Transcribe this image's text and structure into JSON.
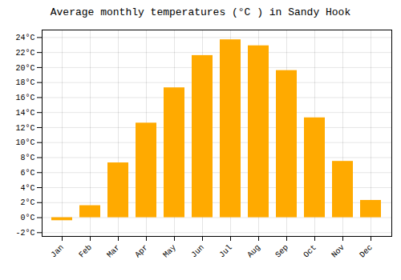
{
  "chart_data": {
    "type": "bar",
    "title": "Average monthly temperatures (°C ) in Sandy Hook",
    "categories": [
      "Jan",
      "Feb",
      "Mar",
      "Apr",
      "May",
      "Jun",
      "Jul",
      "Aug",
      "Sep",
      "Oct",
      "Nov",
      "Dec"
    ],
    "values": [
      -0.4,
      1.6,
      7.3,
      12.6,
      17.3,
      21.6,
      23.7,
      22.9,
      19.6,
      13.3,
      7.5,
      2.3
    ],
    "color": "#FFAA00",
    "ylim": [
      -2.5,
      25
    ],
    "yticks": [
      {
        "value": -2,
        "label": "-2°C"
      },
      {
        "value": 0,
        "label": "0°C"
      },
      {
        "value": 2,
        "label": "2°C"
      },
      {
        "value": 4,
        "label": "4°C"
      },
      {
        "value": 6,
        "label": "6°C"
      },
      {
        "value": 8,
        "label": "8°C"
      },
      {
        "value": 10,
        "label": "10°C"
      },
      {
        "value": 12,
        "label": "12°C"
      },
      {
        "value": 14,
        "label": "14°C"
      },
      {
        "value": 16,
        "label": "16°C"
      },
      {
        "value": 18,
        "label": "18°C"
      },
      {
        "value": 20,
        "label": "20°C"
      },
      {
        "value": 22,
        "label": "22°C"
      },
      {
        "value": 24,
        "label": "24°C"
      }
    ],
    "grid": true
  }
}
